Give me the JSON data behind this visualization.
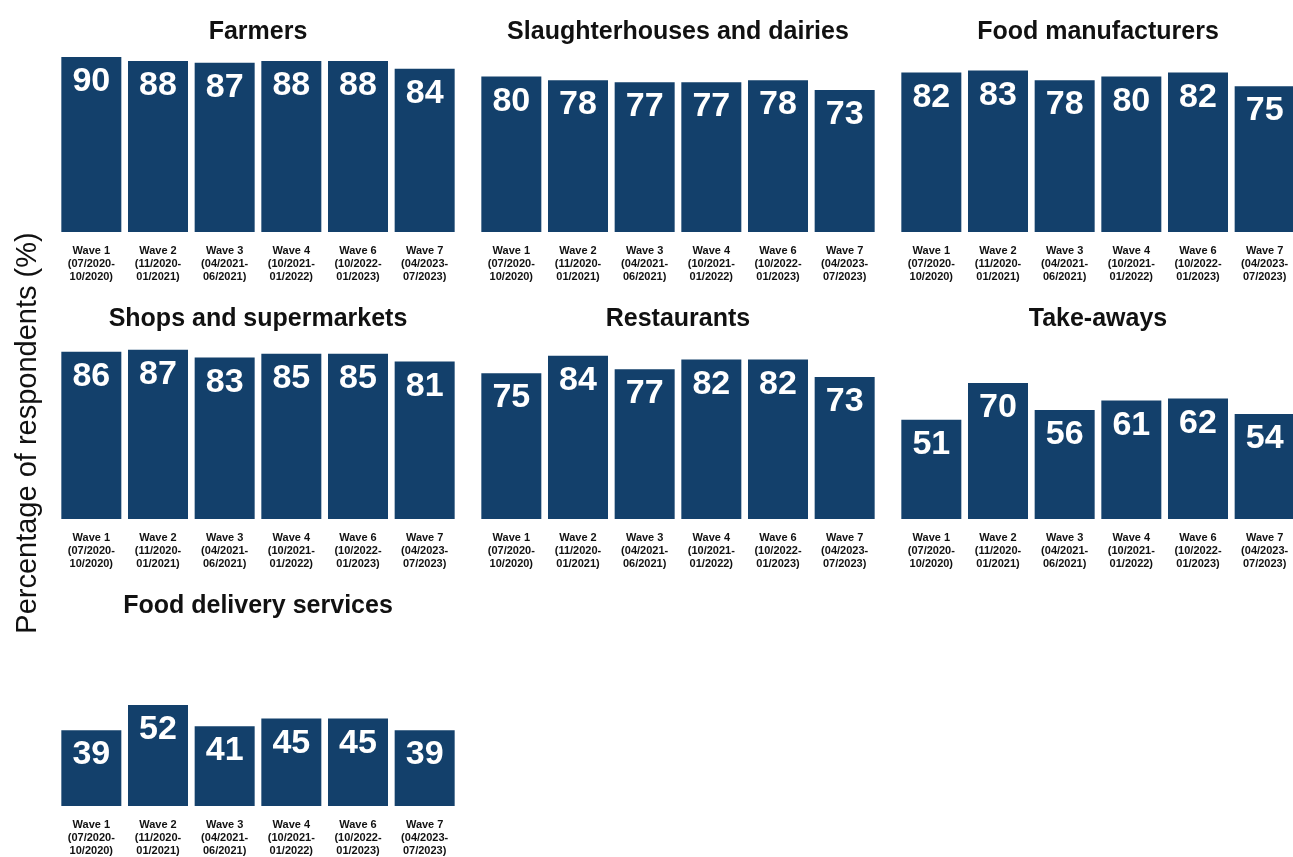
{
  "chart_data": [
    {
      "type": "bar",
      "title": "Farmers",
      "ylabel": "Percentage of respondents (%)",
      "categories": [
        "Wave 1\n(07/2020-\n10/2020)",
        "Wave 2\n(11/2020-\n01/2021)",
        "Wave 3\n(04/2021-\n06/2021)",
        "Wave 4\n(10/2021-\n01/2022)",
        "Wave 6\n(10/2022-\n01/2023)",
        "Wave 7\n(04/2023-\n07/2023)"
      ],
      "values": [
        90,
        88,
        87,
        88,
        88,
        84
      ],
      "color": "#13406b",
      "data_labels": true
    },
    {
      "type": "bar",
      "title": "Slaughterhouses and dairies",
      "categories": [
        "Wave 1\n(07/2020-\n10/2020)",
        "Wave 2\n(11/2020-\n01/2021)",
        "Wave 3\n(04/2021-\n06/2021)",
        "Wave 4\n(10/2021-\n01/2022)",
        "Wave 6\n(10/2022-\n01/2023)",
        "Wave 7\n(04/2023-\n07/2023)"
      ],
      "values": [
        80,
        78,
        77,
        77,
        78,
        73
      ],
      "color": "#13406b",
      "data_labels": true
    },
    {
      "type": "bar",
      "title": "Food manufacturers",
      "categories": [
        "Wave 1\n(07/2020-\n10/2020)",
        "Wave 2\n(11/2020-\n01/2021)",
        "Wave 3\n(04/2021-\n06/2021)",
        "Wave 4\n(10/2021-\n01/2022)",
        "Wave 6\n(10/2022-\n01/2023)",
        "Wave 7\n(04/2023-\n07/2023)"
      ],
      "values": [
        82,
        83,
        78,
        80,
        82,
        75
      ],
      "color": "#13406b",
      "data_labels": true
    },
    {
      "type": "bar",
      "title": "Shops and supermarkets",
      "categories": [
        "Wave 1\n(07/2020-\n10/2020)",
        "Wave 2\n(11/2020-\n01/2021)",
        "Wave 3\n(04/2021-\n06/2021)",
        "Wave 4\n(10/2021-\n01/2022)",
        "Wave 6\n(10/2022-\n01/2023)",
        "Wave 7\n(04/2023-\n07/2023)"
      ],
      "values": [
        86,
        87,
        83,
        85,
        85,
        81
      ],
      "color": "#13406b",
      "data_labels": true
    },
    {
      "type": "bar",
      "title": "Restaurants",
      "categories": [
        "Wave 1\n(07/2020-\n10/2020)",
        "Wave 2\n(11/2020-\n01/2021)",
        "Wave 3\n(04/2021-\n06/2021)",
        "Wave 4\n(10/2021-\n01/2022)",
        "Wave 6\n(10/2022-\n01/2023)",
        "Wave 7\n(04/2023-\n07/2023)"
      ],
      "values": [
        75,
        84,
        77,
        82,
        82,
        73
      ],
      "color": "#13406b",
      "data_labels": true
    },
    {
      "type": "bar",
      "title": "Take-aways",
      "categories": [
        "Wave 1\n(07/2020-\n10/2020)",
        "Wave 2\n(11/2020-\n01/2021)",
        "Wave 3\n(04/2021-\n06/2021)",
        "Wave 4\n(10/2021-\n01/2022)",
        "Wave 6\n(10/2022-\n01/2023)",
        "Wave 7\n(04/2023-\n07/2023)"
      ],
      "values": [
        51,
        70,
        56,
        61,
        62,
        54
      ],
      "color": "#13406b",
      "data_labels": true
    },
    {
      "type": "bar",
      "title": "Food delivery services",
      "categories": [
        "Wave 1\n(07/2020-\n10/2020)",
        "Wave 2\n(11/2020-\n01/2021)",
        "Wave 3\n(04/2021-\n06/2021)",
        "Wave 4\n(10/2021-\n01/2022)",
        "Wave 6\n(10/2022-\n01/2023)",
        "Wave 7\n(04/2023-\n07/2023)"
      ],
      "values": [
        39,
        52,
        41,
        45,
        45,
        39
      ],
      "color": "#13406b",
      "data_labels": true
    }
  ]
}
